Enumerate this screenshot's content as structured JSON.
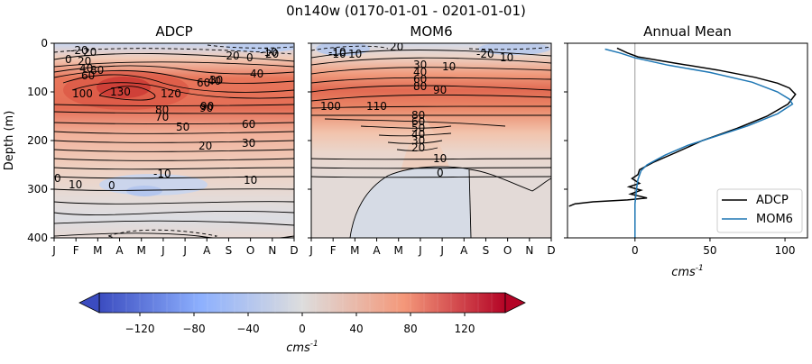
{
  "figure": {
    "suptitle": "0n140w (0170-01-01 - 0201-01-01)"
  },
  "chart_data": [
    {
      "type": "heatmap",
      "title": "ADCP",
      "ylabel": "Depth (m)",
      "x": [
        "J",
        "F",
        "M",
        "A",
        "M",
        "J",
        "J",
        "A",
        "S",
        "O",
        "N",
        "D"
      ],
      "yticks": [
        0,
        100,
        200,
        300,
        400
      ],
      "ylim": [
        400,
        0
      ],
      "contour_labels": [
        "-20",
        "0",
        "20",
        "20",
        "40",
        "60",
        "80",
        "100",
        "120",
        "130",
        "40",
        "60",
        "70",
        "80",
        "90",
        "50",
        "20",
        "30",
        "0",
        "-10",
        "-20",
        "10",
        "-10",
        "0",
        "20",
        "40",
        "60",
        "90",
        "30",
        "10",
        "0"
      ]
    },
    {
      "type": "heatmap",
      "title": "MOM6",
      "x": [
        "J",
        "F",
        "M",
        "A",
        "M",
        "J",
        "J",
        "A",
        "S",
        "O",
        "N",
        "D"
      ],
      "yticks": [
        0,
        100,
        200,
        300,
        400
      ],
      "ylim": [
        400,
        0
      ],
      "contour_labels": [
        "-10",
        "10",
        "20",
        "30",
        "40",
        "60",
        "80",
        "90",
        "10",
        "-20",
        "-10",
        "10",
        "100",
        "110",
        "80",
        "60",
        "50",
        "40",
        "30",
        "20",
        "10",
        "0"
      ]
    },
    {
      "type": "line",
      "title": "Annual Mean",
      "xlabel": "cms",
      "xlabel_sup": "-1",
      "xticks": [
        0,
        50,
        100
      ],
      "xlim": [
        -45,
        115
      ],
      "ylim": [
        400,
        0
      ],
      "legend": "lower-right",
      "series": [
        {
          "name": "ADCP",
          "color": "#000000",
          "points": [
            [
              -12,
              10
            ],
            [
              -5,
              20
            ],
            [
              2,
              28
            ],
            [
              25,
              40
            ],
            [
              55,
              55
            ],
            [
              80,
              70
            ],
            [
              95,
              82
            ],
            [
              103,
              92
            ],
            [
              107,
              105
            ],
            [
              102,
              125
            ],
            [
              88,
              150
            ],
            [
              68,
              175
            ],
            [
              45,
              200
            ],
            [
              27,
              225
            ],
            [
              12,
              245
            ],
            [
              3,
              260
            ],
            [
              2,
              270
            ],
            [
              -2,
              278
            ],
            [
              3,
              288
            ],
            [
              -4,
              295
            ],
            [
              4,
              302
            ],
            [
              -3,
              310
            ],
            [
              8,
              318
            ],
            [
              -5,
              322
            ],
            [
              -28,
              326
            ],
            [
              -40,
              330
            ],
            [
              -44,
              335
            ]
          ]
        },
        {
          "name": "MOM6",
          "color": "#1f77b4",
          "points": [
            [
              -20,
              12
            ],
            [
              -10,
              20
            ],
            [
              0,
              30
            ],
            [
              22,
              45
            ],
            [
              50,
              60
            ],
            [
              78,
              80
            ],
            [
              95,
              100
            ],
            [
              103,
              115
            ],
            [
              105,
              125
            ],
            [
              95,
              145
            ],
            [
              75,
              170
            ],
            [
              55,
              190
            ],
            [
              35,
              210
            ],
            [
              20,
              230
            ],
            [
              8,
              250
            ],
            [
              4,
              262
            ],
            [
              2,
              280
            ],
            [
              1,
              300
            ],
            [
              0,
              330
            ],
            [
              0,
              360
            ],
            [
              0,
              400
            ]
          ]
        }
      ]
    }
  ],
  "colorbar": {
    "ticks": [
      "−120",
      "−80",
      "−40",
      "0",
      "40",
      "80",
      "120"
    ],
    "values": [
      -120,
      -80,
      -40,
      0,
      40,
      80,
      120
    ],
    "range": [
      -150,
      150
    ],
    "label": "cms",
    "label_sup": "-1",
    "colors": {
      "low": "#3b4cc0",
      "mid": "#dddddd",
      "high": "#b40426"
    }
  }
}
